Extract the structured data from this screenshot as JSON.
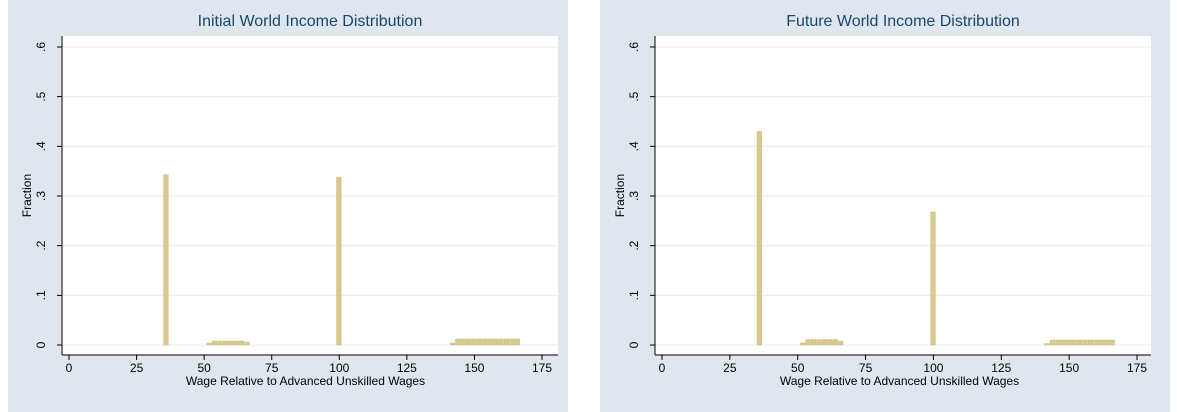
{
  "chart_data": [
    {
      "type": "histogram",
      "title": "Initial World Income Distribution",
      "x_label": "Wage Relative to Advanced Unskilled Wages",
      "y_label": "Fraction",
      "bins": [
        35,
        37,
        39,
        41,
        43,
        45,
        47,
        49,
        51,
        53,
        55,
        57,
        59,
        61,
        63,
        65,
        67,
        69,
        71,
        73,
        75,
        77,
        79,
        81,
        83,
        85,
        87,
        89,
        91,
        93,
        95,
        97,
        99,
        101,
        103,
        105,
        107,
        109,
        111,
        113,
        115,
        117,
        119,
        121,
        123,
        125,
        127,
        129,
        131,
        133,
        135,
        137,
        139,
        141,
        143,
        145,
        147,
        149,
        151,
        153,
        155,
        157,
        159,
        161,
        163,
        165,
        167
      ],
      "counts": [
        0.343,
        0,
        0,
        0,
        0,
        0,
        0,
        0,
        0.004,
        0.008,
        0.008,
        0.008,
        0.008,
        0.008,
        0.008,
        0.006,
        0,
        0,
        0,
        0,
        0,
        0,
        0,
        0,
        0,
        0,
        0,
        0,
        0,
        0,
        0,
        0,
        0.338,
        0,
        0,
        0,
        0,
        0,
        0,
        0,
        0,
        0,
        0,
        0,
        0,
        0,
        0,
        0,
        0,
        0,
        0,
        0,
        0,
        0.004,
        0.012,
        0.012,
        0.012,
        0.012,
        0.012,
        0.012,
        0.012,
        0.012,
        0.012,
        0.012,
        0.012,
        0.012
      ],
      "color": "#d8ca8c",
      "xlim": [
        0,
        175
      ],
      "xticks": [
        0,
        25,
        50,
        75,
        100,
        125,
        150,
        175
      ],
      "ylim": [
        0,
        0.6
      ],
      "yticks": [
        0,
        {
          "value": 0.1,
          "label": ".1"
        },
        {
          "value": 0.2,
          "label": ".2"
        },
        {
          "value": 0.3,
          "label": ".3"
        },
        {
          "value": 0.4,
          "label": ".4"
        },
        {
          "value": 0.5,
          "label": ".5"
        },
        {
          "value": 0.6,
          "label": ".6"
        }
      ],
      "grid": true
    },
    {
      "type": "histogram",
      "title": "Future World Income Distribution",
      "x_label": "Wage Relative to Advanced Unskilled Wages",
      "y_label": "Fraction",
      "bins": [
        35,
        37,
        39,
        41,
        43,
        45,
        47,
        49,
        51,
        53,
        55,
        57,
        59,
        61,
        63,
        65,
        67,
        69,
        71,
        73,
        75,
        77,
        79,
        81,
        83,
        85,
        87,
        89,
        91,
        93,
        95,
        97,
        99,
        101,
        103,
        105,
        107,
        109,
        111,
        113,
        115,
        117,
        119,
        121,
        123,
        125,
        127,
        129,
        131,
        133,
        135,
        137,
        139,
        141,
        143,
        145,
        147,
        149,
        151,
        153,
        155,
        157,
        159,
        161,
        163,
        165,
        167
      ],
      "counts": [
        0.43,
        0,
        0,
        0,
        0,
        0,
        0,
        0,
        0.004,
        0.011,
        0.011,
        0.011,
        0.011,
        0.011,
        0.011,
        0.008,
        0,
        0,
        0,
        0,
        0,
        0,
        0,
        0,
        0,
        0,
        0,
        0,
        0,
        0,
        0,
        0,
        0.268,
        0,
        0,
        0,
        0,
        0,
        0,
        0,
        0,
        0,
        0,
        0,
        0,
        0,
        0,
        0,
        0,
        0,
        0,
        0,
        0,
        0.003,
        0.01,
        0.01,
        0.01,
        0.01,
        0.01,
        0.01,
        0.01,
        0.01,
        0.01,
        0.01,
        0.01,
        0.01
      ],
      "color": "#d8ca8c",
      "xlim": [
        0,
        175
      ],
      "xticks": [
        0,
        25,
        50,
        75,
        100,
        125,
        150,
        175
      ],
      "ylim": [
        0,
        0.6
      ],
      "yticks": [
        0,
        {
          "value": 0.1,
          "label": ".1"
        },
        {
          "value": 0.2,
          "label": ".2"
        },
        {
          "value": 0.3,
          "label": ".3"
        },
        {
          "value": 0.4,
          "label": ".4"
        },
        {
          "value": 0.5,
          "label": ".5"
        },
        {
          "value": 0.6,
          "label": ".6"
        }
      ],
      "grid": true
    }
  ]
}
